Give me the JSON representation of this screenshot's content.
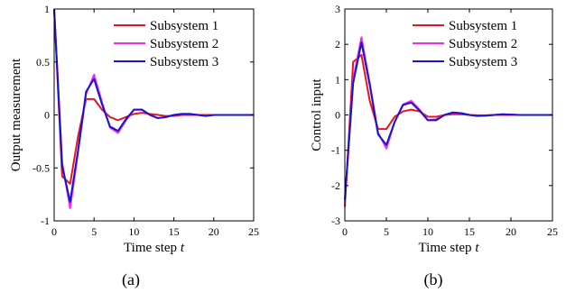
{
  "chart_data": [
    {
      "type": "line",
      "id": "a",
      "title": "",
      "caption": "(a)",
      "xlabel": "Time step",
      "xlabel_var": "t",
      "ylabel": "Output measurement",
      "xlim": [
        0,
        25
      ],
      "ylim": [
        -1,
        1
      ],
      "xticks": [
        0,
        5,
        10,
        15,
        20,
        25
      ],
      "yticks": [
        -1,
        -0.5,
        0,
        0.5,
        1
      ],
      "ytick_labels": [
        "-1",
        "-0.5",
        "0",
        "0.5",
        "1"
      ],
      "grid": false,
      "legend_position": "top-right",
      "x": [
        0,
        1,
        2,
        3,
        4,
        5,
        6,
        7,
        8,
        9,
        10,
        11,
        12,
        13,
        14,
        15,
        16,
        17,
        18,
        19,
        20,
        21,
        22,
        23,
        24,
        25
      ],
      "series": [
        {
          "name": "Subsystem 1",
          "color": "#e8141e",
          "values": [
            1.0,
            -0.58,
            -0.65,
            -0.2,
            0.15,
            0.15,
            0.05,
            -0.02,
            -0.05,
            -0.02,
            0.01,
            0.02,
            0.01,
            0.0,
            -0.01,
            -0.01,
            0.0,
            0.0,
            0.0,
            0.0,
            0.0,
            0.0,
            0.0,
            0.0,
            0.0,
            0.0
          ]
        },
        {
          "name": "Subsystem 2",
          "color": "#ee2af0",
          "values": [
            1.0,
            -0.45,
            -0.88,
            -0.35,
            0.2,
            0.38,
            0.12,
            -0.12,
            -0.17,
            -0.05,
            0.05,
            0.05,
            0.0,
            -0.03,
            -0.02,
            0.0,
            0.01,
            0.01,
            0.0,
            -0.01,
            0.0,
            0.0,
            0.0,
            0.0,
            0.0,
            0.0
          ]
        },
        {
          "name": "Subsystem 3",
          "color": "#1515d0",
          "values": [
            1.0,
            -0.48,
            -0.82,
            -0.33,
            0.22,
            0.34,
            0.1,
            -0.11,
            -0.15,
            -0.04,
            0.05,
            0.05,
            0.0,
            -0.03,
            -0.02,
            0.0,
            0.01,
            0.01,
            0.0,
            -0.01,
            0.0,
            0.0,
            0.0,
            0.0,
            0.0,
            0.0
          ]
        }
      ]
    },
    {
      "type": "line",
      "id": "b",
      "title": "",
      "caption": "(b)",
      "xlabel": "Time step",
      "xlabel_var": "t",
      "ylabel": "Control input",
      "xlim": [
        0,
        25
      ],
      "ylim": [
        -3,
        3
      ],
      "xticks": [
        0,
        5,
        10,
        15,
        20,
        25
      ],
      "yticks": [
        -3,
        -2,
        -1,
        0,
        1,
        2,
        3
      ],
      "ytick_labels": [
        "-3",
        "-2",
        "-1",
        "0",
        "1",
        "2",
        "3"
      ],
      "grid": false,
      "legend_position": "top-right",
      "x": [
        0,
        1,
        2,
        3,
        4,
        5,
        6,
        7,
        8,
        9,
        10,
        11,
        12,
        13,
        14,
        15,
        16,
        17,
        18,
        19,
        20,
        21,
        22,
        23,
        24,
        25
      ],
      "series": [
        {
          "name": "Subsystem 1",
          "color": "#e8141e",
          "values": [
            -2.6,
            1.5,
            1.7,
            0.4,
            -0.4,
            -0.4,
            -0.05,
            0.1,
            0.15,
            0.1,
            -0.05,
            -0.05,
            0.0,
            0.02,
            0.02,
            0.0,
            -0.01,
            -0.01,
            0.0,
            0.0,
            0.0,
            0.0,
            0.0,
            0.0,
            0.0,
            0.0
          ]
        },
        {
          "name": "Subsystem 2",
          "color": "#ee2af0",
          "values": [
            -2.5,
            1.0,
            2.2,
            0.9,
            -0.5,
            -0.95,
            -0.2,
            0.3,
            0.4,
            0.15,
            -0.15,
            -0.12,
            0.0,
            0.06,
            0.05,
            0.0,
            -0.03,
            -0.02,
            0.0,
            0.02,
            0.01,
            0.0,
            0.0,
            0.0,
            0.0,
            0.0
          ]
        },
        {
          "name": "Subsystem 3",
          "color": "#1515d0",
          "values": [
            -2.4,
            0.9,
            2.05,
            0.85,
            -0.55,
            -0.85,
            -0.2,
            0.28,
            0.35,
            0.12,
            -0.15,
            -0.15,
            0.0,
            0.07,
            0.05,
            0.0,
            -0.03,
            -0.02,
            0.0,
            0.02,
            0.01,
            0.0,
            0.0,
            0.0,
            0.0,
            0.0
          ]
        }
      ]
    }
  ]
}
